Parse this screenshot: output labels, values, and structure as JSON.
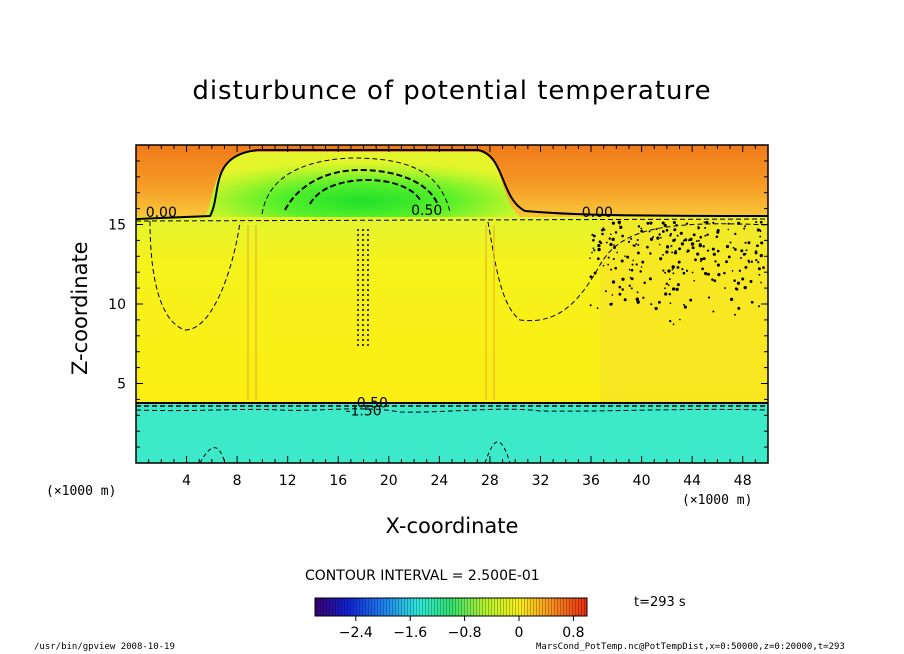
{
  "chart_data": {
    "type": "heatmap",
    "title": "disturbunce of potential temperature",
    "xlabel": "X-coordinate",
    "ylabel": "Z-coordinate",
    "x_unit_left": "(×1000 m)",
    "x_unit_right": "(×1000 m)",
    "xlim": [
      0,
      50
    ],
    "ylim": [
      0,
      20
    ],
    "x_ticks": [
      4,
      8,
      12,
      16,
      20,
      24,
      28,
      32,
      36,
      40,
      44,
      48
    ],
    "y_ticks": [
      5,
      10,
      15
    ],
    "contour_interval_text": "CONTOUR INTERVAL = 2.500E-01",
    "contour_labels": [
      {
        "text": "0.00",
        "x": 2.0,
        "z": 15.8
      },
      {
        "text": "0.50",
        "x": 23.0,
        "z": 15.9
      },
      {
        "text": "0.00",
        "x": 36.5,
        "z": 15.8
      },
      {
        "text": "-0.50",
        "x": 18.5,
        "z": 3.8
      },
      {
        "text": "-1.50",
        "x": 18.0,
        "z": 3.3
      }
    ],
    "regions": [
      {
        "name": "upper-layer",
        "z_range": [
          15.5,
          20
        ],
        "value_range": [
          0.0,
          0.9
        ]
      },
      {
        "name": "dome",
        "x_center": 18.5,
        "z_center": 17,
        "peak_value": -0.8
      },
      {
        "name": "middle-layer",
        "z_range": [
          3.8,
          15.5
        ],
        "value_range": [
          -0.3,
          0.2
        ]
      },
      {
        "name": "lower-layer",
        "z_range": [
          0,
          3.8
        ],
        "value": -1.5
      }
    ],
    "colorbar": {
      "ticks": [
        "−2.4",
        "−1.6",
        "−0.8",
        "0",
        "0.8"
      ],
      "tick_values": [
        -2.4,
        -1.6,
        -0.8,
        0,
        0.8
      ],
      "range": [
        -3.0,
        1.0
      ]
    },
    "time_text": "t=293 s"
  },
  "footer": {
    "left": "/usr/bin/gpview  2008-10-19",
    "right": "MarsCond_PotTemp.nc@PotTempDist,x=0:50000,z=0:20000,t=293"
  },
  "colors": {
    "upper_orange": "#f58a1e",
    "upper_mid": "#f7aa2b",
    "dome_green": "#2ef02a",
    "middle_yellow": "#f8f017",
    "lower_cyan": "#3ceaca"
  }
}
